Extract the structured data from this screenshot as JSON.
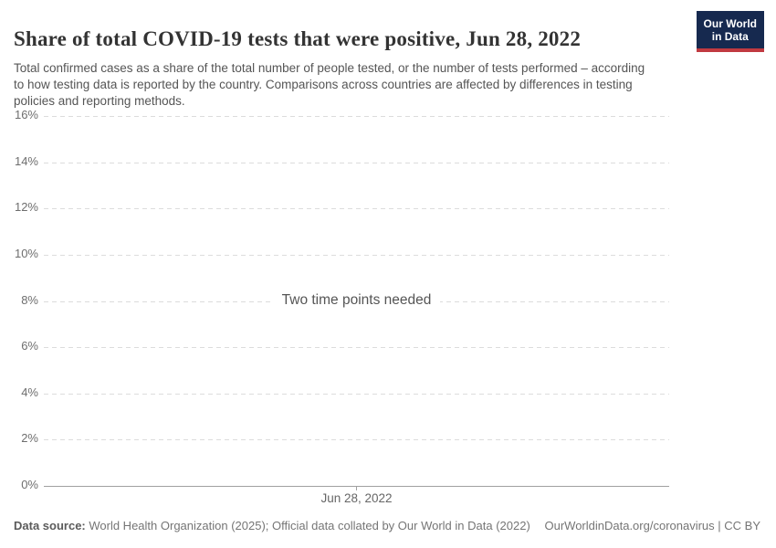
{
  "header": {
    "title": "Share of total COVID-19 tests that were positive, Jun 28, 2022",
    "subtitle": "Total confirmed cases as a share of the total number of people tested, or the number of tests performed – according to how testing data is reported by the country. Comparisons across countries are affected by differences in testing policies and reporting methods.",
    "logo": {
      "line1": "Our World",
      "line2": "in Data",
      "bg_color": "#16294f",
      "stripe_color": "#c13a41"
    }
  },
  "chart_data": {
    "type": "line",
    "title": "Share of total COVID-19 tests that were positive",
    "date": "Jun 28, 2022",
    "message": "Two time points needed",
    "series": [],
    "x": [],
    "xticks": [
      "Jun 28, 2022"
    ],
    "yticks": [
      "16%",
      "14%",
      "12%",
      "10%",
      "8%",
      "6%",
      "4%",
      "2%",
      "0%"
    ],
    "ylim": [
      0,
      16
    ],
    "ytick_step": 2,
    "grid": "horizontal-dashed",
    "gridline_color": "#dcdcdc",
    "axis_color": "#a0a0a0"
  },
  "footer": {
    "datasource_label": "Data source:",
    "datasource_value": " World Health Organization (2025); Official data collated by Our World in Data (2022)",
    "rights": "OurWorldinData.org/coronavirus | CC BY"
  }
}
